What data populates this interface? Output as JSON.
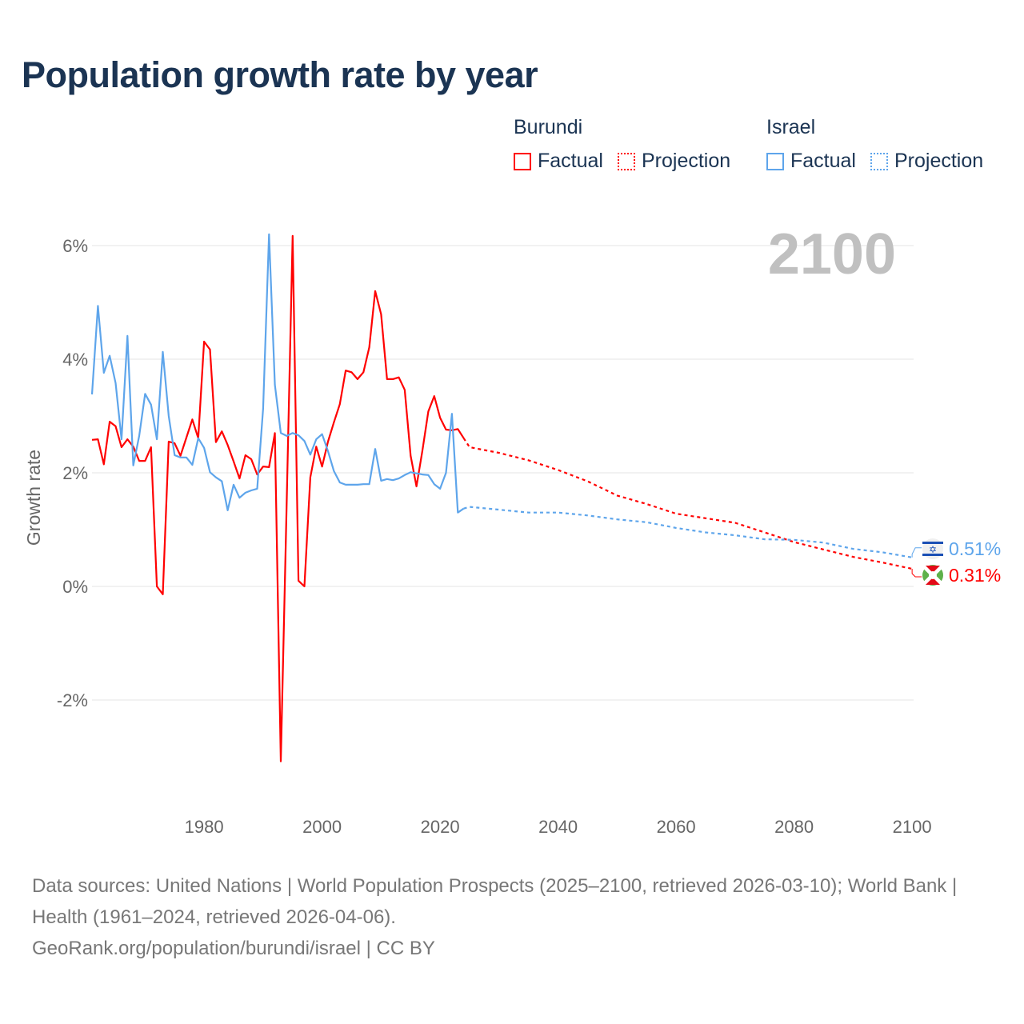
{
  "title": "Population growth rate by year",
  "legend": {
    "groups": [
      {
        "name": "Burundi",
        "color": "#ff0000",
        "factual": "Factual",
        "projection": "Projection"
      },
      {
        "name": "Israel",
        "color": "#5ea5eb",
        "factual": "Factual",
        "projection": "Projection"
      }
    ]
  },
  "year_label": "2100",
  "end_labels": {
    "israel": "0.51%",
    "burundi": "0.31%"
  },
  "footer": {
    "line1": "Data sources: United Nations | World Population Prospects (2025–2100, retrieved 2026-03-10); World Bank | Health (1961–2024, retrieved 2026-04-06).",
    "line2": "GeoRank.org/population/burundi/israel | CC BY"
  },
  "chart_data": {
    "type": "line",
    "title": "Population growth rate by year",
    "xlabel": "",
    "ylabel": "Growth rate",
    "xlim": [
      1961,
      2100
    ],
    "ylim": [
      -3.8,
      6.5
    ],
    "x_ticks": [
      1980,
      2000,
      2020,
      2040,
      2060,
      2080,
      2100
    ],
    "x_tick_labels": [
      "1980",
      "2000",
      "2020",
      "2040",
      "2060",
      "2080",
      "2100"
    ],
    "y_ticks": [
      -2,
      0,
      2,
      4,
      6
    ],
    "y_tick_labels": [
      "-2%",
      "0%",
      "2%",
      "4%",
      "6%"
    ],
    "grid": true,
    "legend_position": "top-right",
    "series": [
      {
        "name": "Burundi",
        "kind": "Factual",
        "color": "#ff0000",
        "x_start": 1961,
        "values": [
          2.58,
          2.59,
          2.15,
          2.9,
          2.82,
          2.45,
          2.59,
          2.46,
          2.21,
          2.21,
          2.45,
          0.0,
          -0.14,
          2.55,
          2.52,
          2.3,
          2.62,
          2.94,
          2.61,
          4.31,
          4.17,
          2.54,
          2.73,
          2.49,
          2.2,
          1.9,
          2.31,
          2.24,
          1.97,
          2.11,
          2.1,
          2.7,
          -3.08,
          1.5,
          6.17,
          0.1,
          0.0,
          1.92,
          2.46,
          2.11,
          2.55,
          2.89,
          3.21,
          3.8,
          3.77,
          3.65,
          3.77,
          4.21,
          5.2,
          4.79,
          3.65,
          3.65,
          3.68,
          3.46,
          2.3,
          1.76,
          2.39,
          3.08,
          3.35,
          2.97,
          2.76,
          2.75,
          2.77,
          2.61
        ]
      },
      {
        "name": "Burundi",
        "kind": "Projection",
        "color": "#ff0000",
        "x": [
          2024,
          2025,
          2030,
          2035,
          2040,
          2045,
          2050,
          2055,
          2060,
          2065,
          2070,
          2075,
          2080,
          2085,
          2090,
          2095,
          2100
        ],
        "values": [
          2.61,
          2.45,
          2.35,
          2.22,
          2.05,
          1.85,
          1.6,
          1.45,
          1.28,
          1.2,
          1.12,
          0.95,
          0.78,
          0.65,
          0.52,
          0.42,
          0.31
        ]
      },
      {
        "name": "Israel",
        "kind": "Factual",
        "color": "#5ea5eb",
        "x_start": 1961,
        "values": [
          3.38,
          4.94,
          3.76,
          4.06,
          3.58,
          2.59,
          4.41,
          2.13,
          2.65,
          3.39,
          3.2,
          2.59,
          4.13,
          3.0,
          2.31,
          2.27,
          2.27,
          2.14,
          2.61,
          2.44,
          2.01,
          1.92,
          1.85,
          1.34,
          1.79,
          1.56,
          1.65,
          1.69,
          1.72,
          3.13,
          6.2,
          3.55,
          2.7,
          2.65,
          2.7,
          2.66,
          2.56,
          2.32,
          2.59,
          2.68,
          2.38,
          2.03,
          1.83,
          1.79,
          1.79,
          1.79,
          1.8,
          1.8,
          2.42,
          1.86,
          1.89,
          1.87,
          1.9,
          1.96,
          2.01,
          1.99,
          1.97,
          1.96,
          1.8,
          1.72,
          2.0,
          3.04,
          1.3,
          1.37
        ]
      },
      {
        "name": "Israel",
        "kind": "Projection",
        "color": "#5ea5eb",
        "x": [
          2024,
          2025,
          2030,
          2035,
          2040,
          2045,
          2050,
          2055,
          2060,
          2065,
          2070,
          2075,
          2080,
          2085,
          2090,
          2095,
          2100
        ],
        "values": [
          1.37,
          1.4,
          1.35,
          1.3,
          1.3,
          1.25,
          1.18,
          1.13,
          1.03,
          0.95,
          0.9,
          0.83,
          0.82,
          0.77,
          0.66,
          0.6,
          0.51
        ]
      }
    ]
  }
}
